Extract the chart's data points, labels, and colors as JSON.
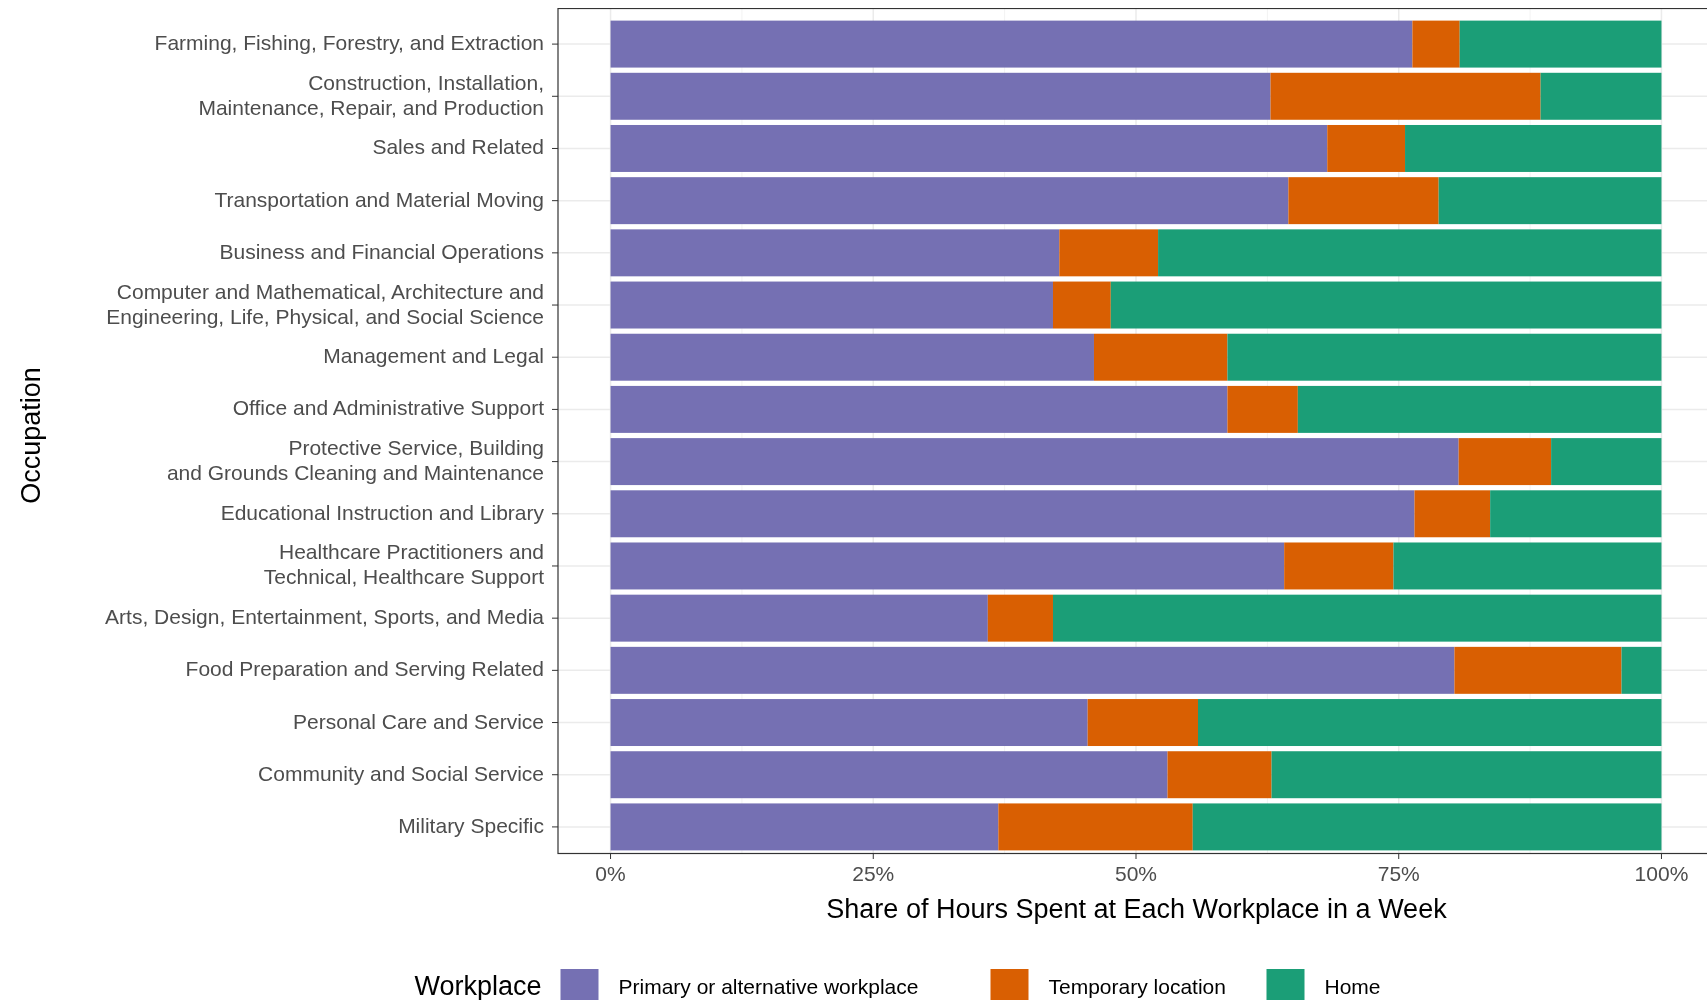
{
  "chart_data": {
    "type": "bar",
    "orientation": "horizontal",
    "stacked": true,
    "xlabel": "Share of Hours Spent at Each Workplace in a Week",
    "ylabel": "Occupation",
    "legend_title": "Workplace",
    "legend": "bottom",
    "grid": true,
    "categories": [
      "Farming, Fishing, Forestry, and Extraction",
      "Construction, Installation,\nMaintenance, Repair, and Production",
      "Sales and Related",
      "Transportation and Material Moving",
      "Business and Financial Operations",
      "Computer and Mathematical, Architecture and\nEngineering, Life, Physical, and Social Science",
      "Management and Legal",
      "Office and Administrative Support",
      "Protective Service, Building\nand Grounds Cleaning and Maintenance",
      "Educational Instruction and Library",
      "Healthcare Practitioners and\nTechnical, Healthcare Support",
      "Arts, Design, Entertainment, Sports, and Media",
      "Food Preparation and Serving Related",
      "Personal Care and Service",
      "Community and Social Service",
      "Military Specific"
    ],
    "xlim": [
      -5,
      105
    ],
    "xticks": [
      {
        "value": 0,
        "label": "0%"
      },
      {
        "value": 25,
        "label": "25%"
      },
      {
        "value": 50,
        "label": "50%"
      },
      {
        "value": 75,
        "label": "75%"
      },
      {
        "value": 100,
        "label": "100%"
      }
    ],
    "series": [
      {
        "name": "Primary or alternative workplace",
        "color": "#7570b3",
        "values": [
          76.3,
          62.8,
          68.2,
          64.5,
          42.7,
          42.1,
          46.0,
          58.7,
          80.7,
          76.5,
          64.1,
          35.9,
          80.3,
          45.4,
          53.0,
          36.9
        ]
      },
      {
        "name": "Temporary location",
        "color": "#d95f02",
        "values": [
          4.5,
          25.7,
          7.4,
          14.3,
          9.4,
          5.5,
          12.7,
          6.7,
          8.8,
          7.2,
          10.4,
          6.2,
          15.9,
          10.5,
          9.9,
          18.5
        ]
      },
      {
        "name": "Home",
        "color": "#1b9e77",
        "values": [
          19.2,
          11.5,
          24.4,
          21.2,
          47.9,
          52.4,
          41.3,
          34.6,
          10.5,
          16.3,
          25.5,
          57.9,
          3.8,
          44.1,
          37.1,
          44.6
        ]
      }
    ]
  }
}
